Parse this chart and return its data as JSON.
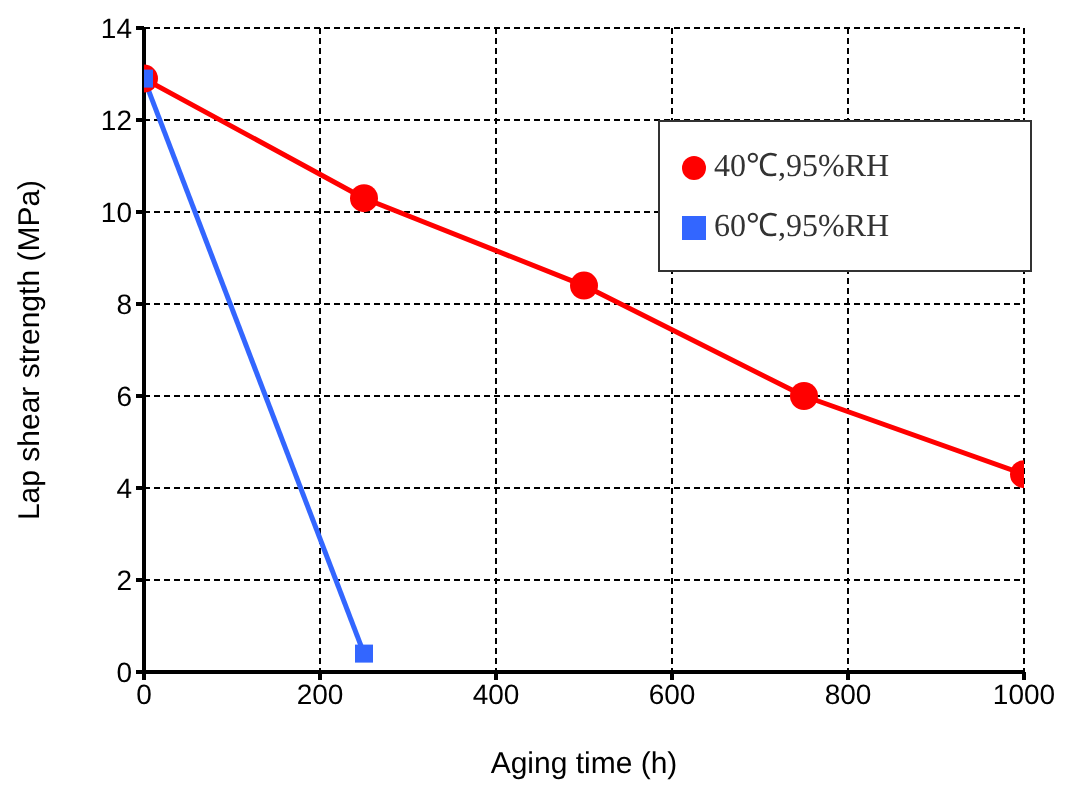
{
  "chart_data": {
    "type": "line",
    "xlabel": "Aging time (h)",
    "ylabel": "Lap shear strength (MPa)",
    "xlim": [
      0,
      1000
    ],
    "xticks": [
      0,
      200,
      400,
      600,
      800,
      1000
    ],
    "ylim": [
      0,
      14
    ],
    "yticks": [
      0,
      2,
      4,
      6,
      8,
      10,
      12,
      14
    ],
    "grid": true,
    "legend": "top right",
    "line_style": "solid",
    "series": [
      {
        "name": "40℃,95%RH",
        "color": "#ff0000",
        "marker": "circle",
        "x": [
          0,
          250,
          500,
          750,
          1000
        ],
        "values": [
          12.9,
          10.3,
          8.4,
          6.0,
          4.3
        ]
      },
      {
        "name": "60℃,95%RH",
        "color": "#3366ff",
        "marker": "square",
        "x": [
          0,
          250
        ],
        "values": [
          12.9,
          0.4
        ]
      }
    ]
  }
}
